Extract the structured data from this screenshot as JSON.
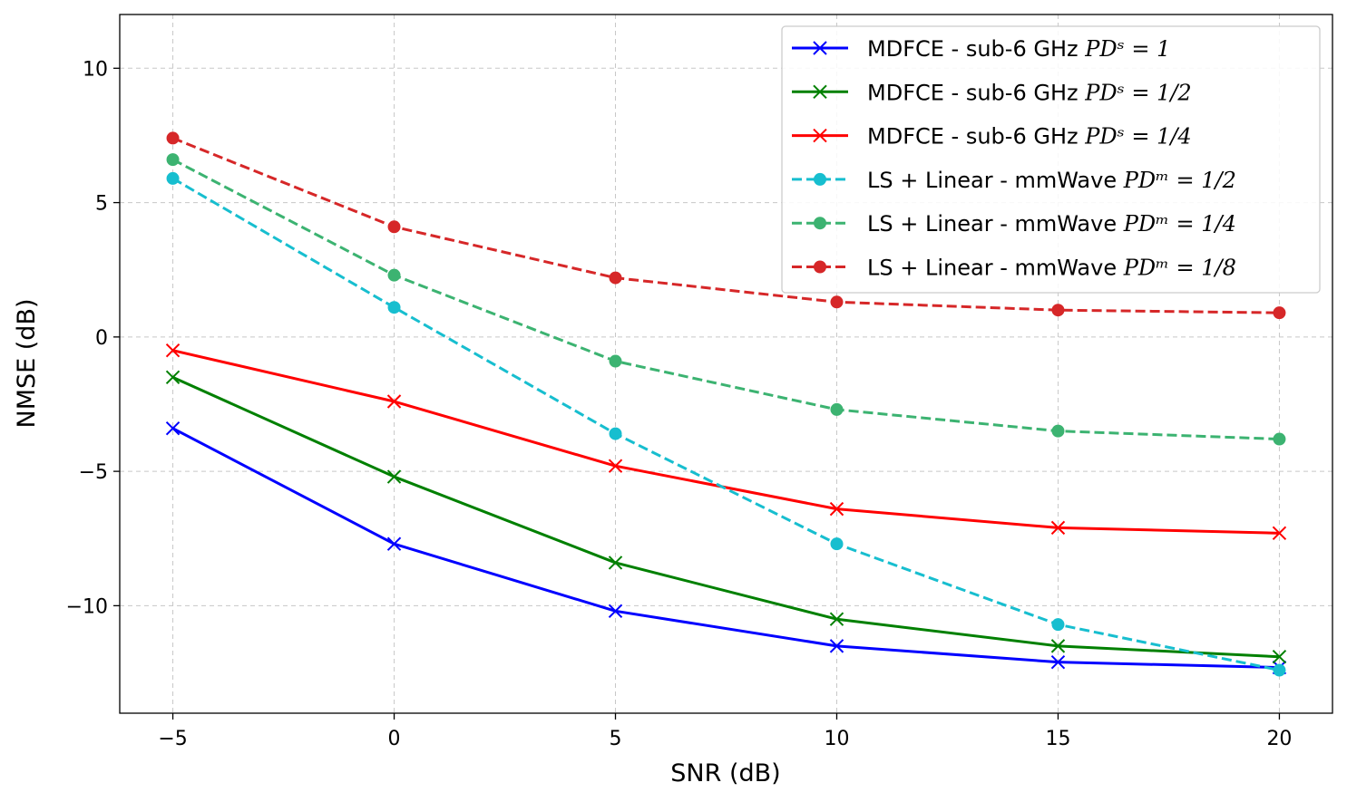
{
  "chart_data": {
    "type": "line",
    "title": "",
    "xlabel": "SNR (dB)",
    "ylabel": "NMSE (dB)",
    "xlim": [
      -6.2,
      21.2
    ],
    "ylim": [
      -14,
      12
    ],
    "xticks": [
      -5,
      0,
      5,
      10,
      15,
      20
    ],
    "xtick_labels": [
      "−5",
      "0",
      "5",
      "10",
      "15",
      "20"
    ],
    "yticks": [
      -10,
      -5,
      0,
      5,
      10
    ],
    "ytick_labels": [
      "−10",
      "−5",
      "0",
      "5",
      "10"
    ],
    "grid": true,
    "legend_position": "top-right",
    "x": [
      -5,
      0,
      5,
      10,
      15,
      20
    ],
    "series": [
      {
        "name": "MDFCE - sub-6 GHz",
        "math": "PDˢ = 1",
        "color": "#0000ff",
        "dashed": false,
        "marker": "x",
        "values": [
          -3.4,
          -7.7,
          -10.2,
          -11.5,
          -12.1,
          -12.3
        ]
      },
      {
        "name": "MDFCE - sub-6 GHz",
        "math": "PDˢ = 1/2",
        "color": "#008000",
        "dashed": false,
        "marker": "x",
        "values": [
          -1.5,
          -5.2,
          -8.4,
          -10.5,
          -11.5,
          -11.9
        ]
      },
      {
        "name": "MDFCE - sub-6 GHz",
        "math": "PDˢ = 1/4",
        "color": "#ff0000",
        "dashed": false,
        "marker": "x",
        "values": [
          -0.5,
          -2.4,
          -4.8,
          -6.4,
          -7.1,
          -7.3
        ]
      },
      {
        "name": "LS + Linear - mmWave",
        "math": "PDᵐ = 1/2",
        "color": "#17becf",
        "dashed": true,
        "marker": "o",
        "values": [
          5.9,
          1.1,
          -3.6,
          -7.7,
          -10.7,
          -12.4
        ]
      },
      {
        "name": "LS + Linear - mmWave",
        "math": "PDᵐ = 1/4",
        "color": "#3cb371",
        "dashed": true,
        "marker": "o",
        "values": [
          6.6,
          2.3,
          -0.9,
          -2.7,
          -3.5,
          -3.8
        ]
      },
      {
        "name": "LS + Linear - mmWave",
        "math": "PDᵐ = 1/8",
        "color": "#d62728",
        "dashed": true,
        "marker": "o",
        "values": [
          7.4,
          4.1,
          2.2,
          1.3,
          1.0,
          0.9
        ]
      }
    ]
  }
}
